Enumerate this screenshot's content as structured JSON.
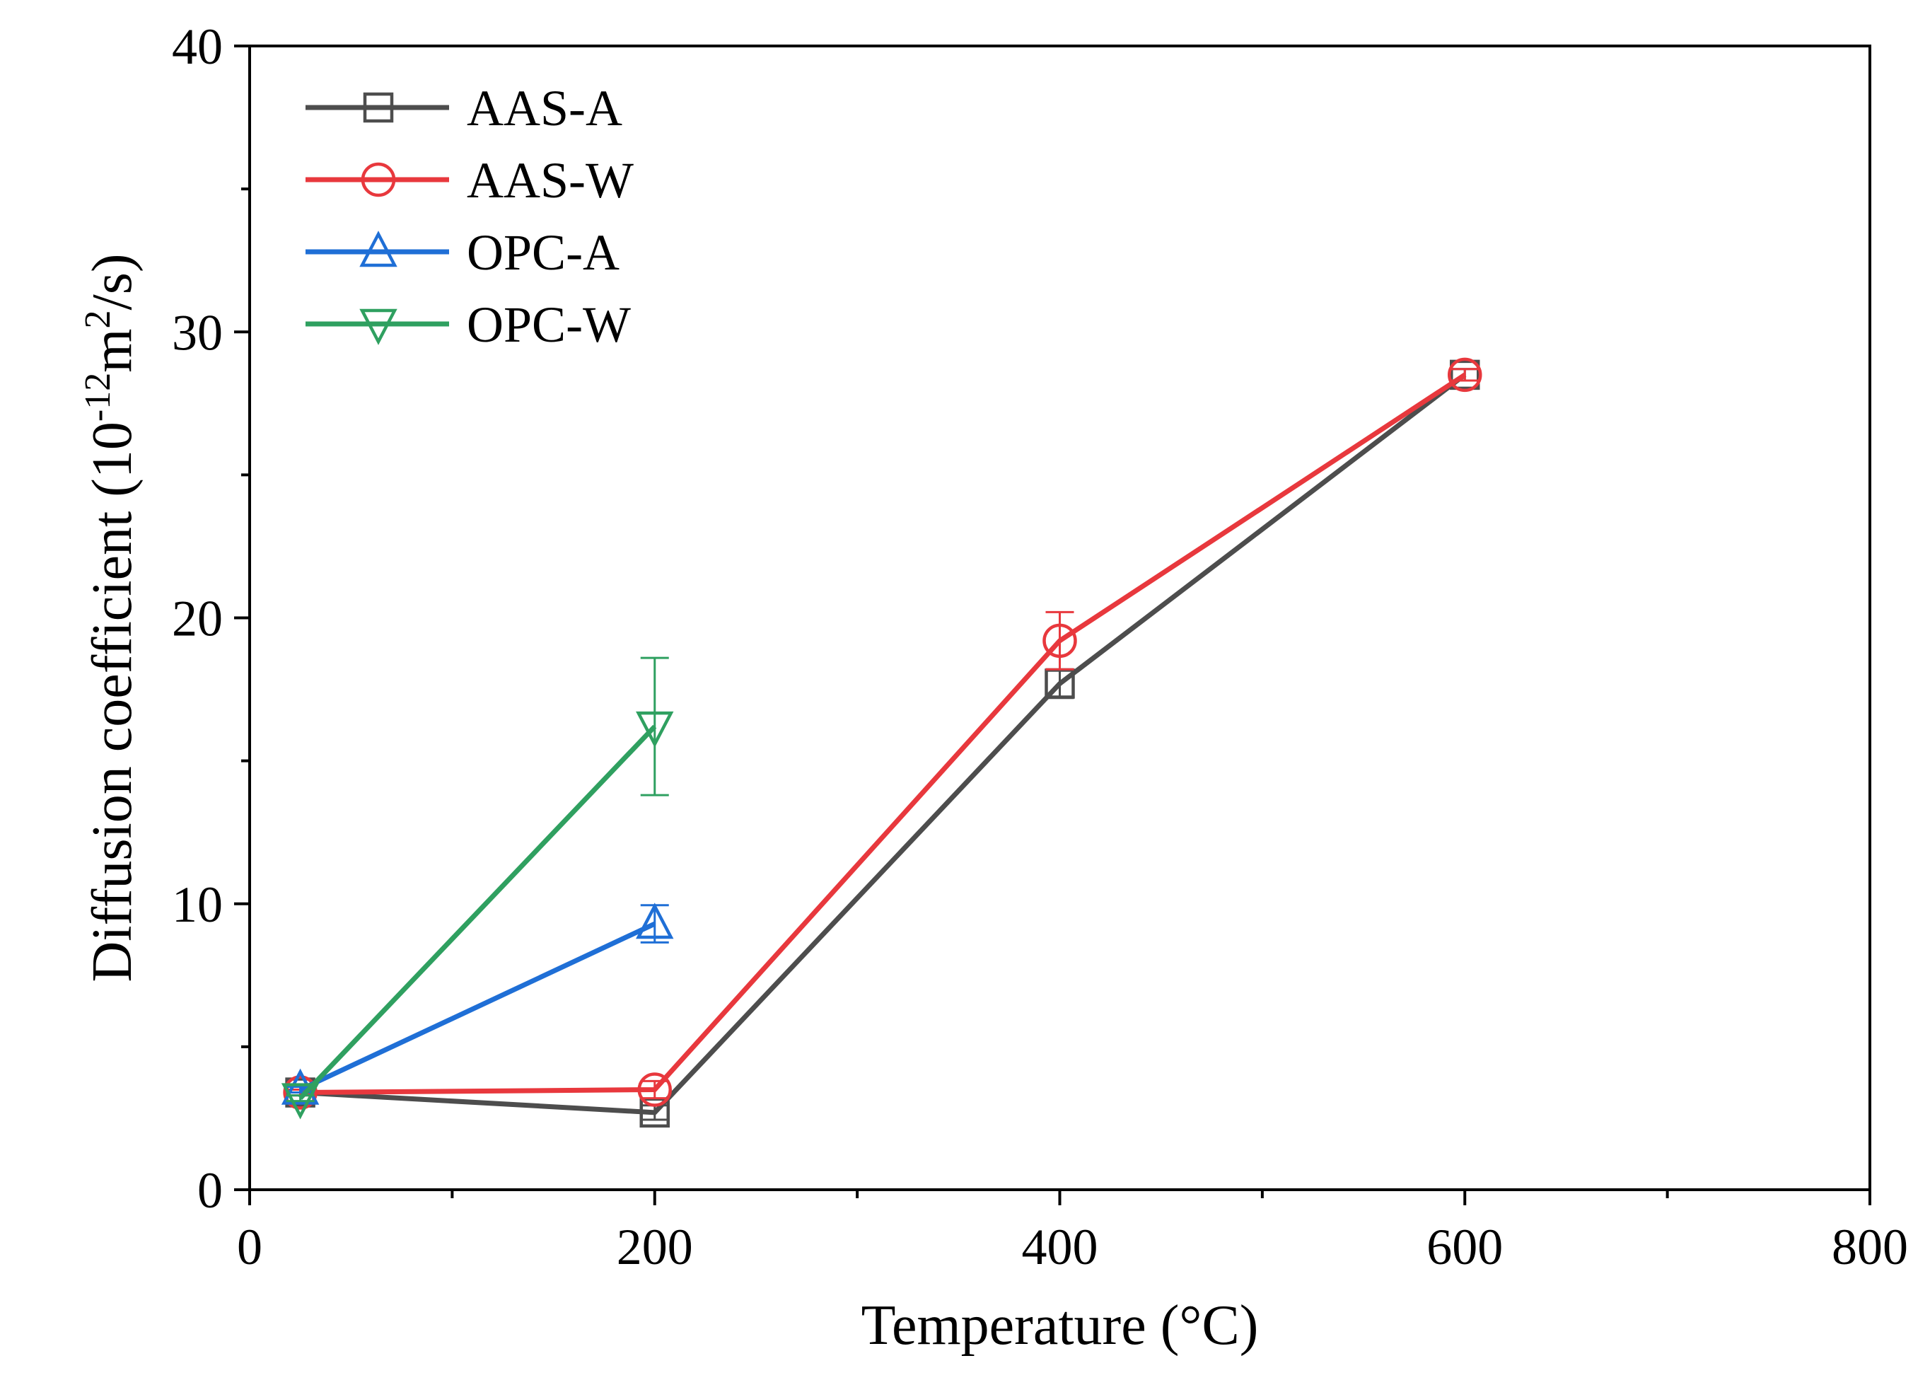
{
  "chart_data": {
    "type": "line",
    "title": "",
    "xlabel": "Temperature (°C)",
    "ylabel": {
      "prefix": "Diffusion coefficient (10",
      "exp1": "-12",
      "mid": "m",
      "exp2": "2",
      "suffix": "/s)"
    },
    "xlim": [
      0,
      800
    ],
    "ylim": [
      0,
      40
    ],
    "x_ticks": [
      0,
      200,
      400,
      600,
      800
    ],
    "x_tick_labels": [
      "0",
      "200",
      "400",
      "600",
      "800"
    ],
    "x_minor_ticks": [
      100,
      300,
      500,
      700
    ],
    "y_ticks": [
      0,
      10,
      20,
      30,
      40
    ],
    "y_tick_labels": [
      "0",
      "10",
      "20",
      "30",
      "40"
    ],
    "y_minor_ticks": [
      5,
      15,
      25,
      35
    ],
    "grid": false,
    "legend_position": "top-left",
    "series": [
      {
        "name": "AAS-A",
        "color": "#4d4d4d",
        "marker": "square",
        "x": [
          25,
          200,
          400,
          600
        ],
        "y": [
          3.4,
          2.7,
          17.7,
          28.5
        ],
        "err": [
          0.1,
          0.25,
          0.5,
          0.2
        ]
      },
      {
        "name": "AAS-W",
        "color": "#e8383d",
        "marker": "circle",
        "x": [
          25,
          200,
          400,
          600
        ],
        "y": [
          3.4,
          3.5,
          19.2,
          28.5
        ],
        "err": [
          0.1,
          0.3,
          1.0,
          0.2
        ]
      },
      {
        "name": "OPC-A",
        "color": "#1f6fd6",
        "marker": "triangle-up",
        "x": [
          25,
          200
        ],
        "y": [
          3.5,
          9.3
        ],
        "err": [
          0.1,
          0.65
        ]
      },
      {
        "name": "OPC-W",
        "color": "#2fa060",
        "marker": "triangle-down",
        "x": [
          25,
          200
        ],
        "y": [
          3.2,
          16.2
        ],
        "err": [
          0.1,
          2.4
        ]
      }
    ]
  }
}
